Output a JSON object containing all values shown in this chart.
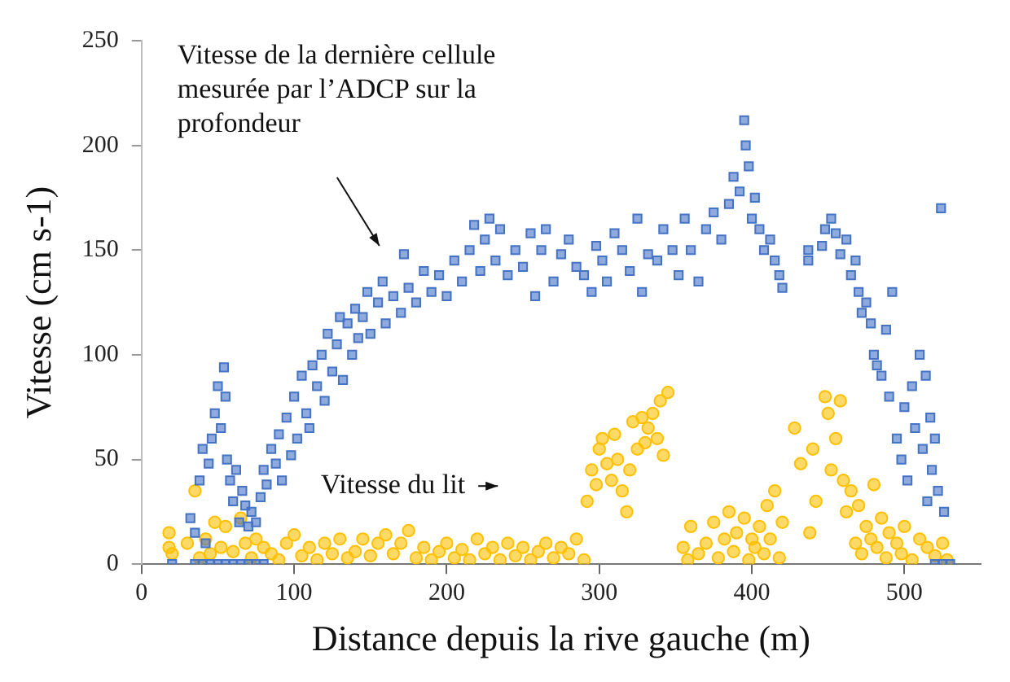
{
  "chart_data": {
    "type": "scatter",
    "xlabel": "Distance depuis la rive gauche (m)",
    "ylabel": "Vitesse (cm s-1)",
    "xlim": [
      0,
      550
    ],
    "xticks": [
      0,
      100,
      200,
      300,
      400,
      500
    ],
    "ylim": [
      0,
      250
    ],
    "yticks": [
      0,
      50,
      100,
      150,
      200,
      250
    ],
    "grid": false,
    "legend": false,
    "annotations": [
      "Vitesse de la dernière cellule mesurée par l’ADCP sur la profondeur",
      "Vitesse du lit"
    ],
    "series": [
      {
        "color": "#4472c4",
        "marker": "square",
        "x": [
          20,
          35,
          40,
          45,
          50,
          55,
          60,
          65,
          70,
          75,
          80,
          32,
          35,
          38,
          40,
          42,
          44,
          46,
          48,
          50,
          52,
          54,
          55,
          56,
          58,
          60,
          62,
          64,
          66,
          68,
          70,
          72,
          75,
          78,
          80,
          82,
          85,
          88,
          90,
          92,
          95,
          98,
          100,
          102,
          105,
          108,
          110,
          112,
          115,
          118,
          120,
          122,
          125,
          128,
          130,
          132,
          135,
          138,
          140,
          142,
          145,
          148,
          150,
          155,
          158,
          160,
          165,
          170,
          172,
          175,
          180,
          185,
          190,
          195,
          200,
          205,
          210,
          215,
          218,
          222,
          225,
          228,
          232,
          235,
          240,
          245,
          250,
          255,
          258,
          262,
          265,
          270,
          275,
          280,
          285,
          290,
          295,
          298,
          302,
          305,
          310,
          315,
          320,
          325,
          328,
          332,
          338,
          342,
          348,
          352,
          356,
          360,
          365,
          370,
          375,
          380,
          385,
          388,
          392,
          395,
          396,
          398,
          400,
          402,
          405,
          408,
          412,
          415,
          418,
          420,
          437,
          437,
          446,
          448,
          452,
          455,
          458,
          462,
          465,
          468,
          470,
          472,
          475,
          478,
          480,
          482,
          485,
          488,
          490,
          492,
          495,
          498,
          500,
          502,
          505,
          507,
          510,
          512,
          514,
          515,
          517,
          518,
          520,
          522,
          524,
          526,
          520,
          525,
          530
        ],
        "values": [
          0,
          0,
          0,
          0,
          0,
          0,
          0,
          0,
          0,
          0,
          0,
          22,
          15,
          40,
          55,
          10,
          48,
          60,
          72,
          85,
          65,
          94,
          80,
          50,
          40,
          30,
          45,
          20,
          35,
          28,
          18,
          25,
          20,
          32,
          45,
          38,
          55,
          48,
          62,
          40,
          70,
          52,
          80,
          60,
          90,
          72,
          65,
          95,
          85,
          100,
          78,
          110,
          92,
          105,
          118,
          88,
          115,
          100,
          122,
          108,
          118,
          130,
          110,
          125,
          135,
          115,
          128,
          120,
          148,
          132,
          125,
          140,
          130,
          138,
          128,
          145,
          135,
          150,
          162,
          140,
          155,
          165,
          145,
          160,
          138,
          150,
          142,
          158,
          128,
          150,
          160,
          135,
          148,
          155,
          142,
          138,
          130,
          152,
          145,
          135,
          158,
          150,
          140,
          165,
          130,
          148,
          145,
          160,
          150,
          138,
          165,
          150,
          135,
          160,
          168,
          155,
          172,
          185,
          178,
          212,
          200,
          190,
          165,
          175,
          160,
          150,
          155,
          145,
          138,
          132,
          150,
          145,
          152,
          160,
          165,
          158,
          148,
          155,
          138,
          145,
          130,
          120,
          125,
          115,
          100,
          95,
          90,
          112,
          80,
          130,
          60,
          50,
          75,
          40,
          85,
          65,
          100,
          55,
          90,
          30,
          70,
          45,
          60,
          35,
          170,
          25,
          0,
          0,
          0
        ]
      },
      {
        "color": "#ffc000",
        "marker": "circle",
        "x": [
          18,
          18,
          20,
          30,
          35,
          38,
          42,
          45,
          48,
          52,
          55,
          60,
          65,
          68,
          72,
          75,
          80,
          85,
          90,
          95,
          100,
          105,
          110,
          115,
          120,
          125,
          130,
          135,
          140,
          145,
          150,
          155,
          160,
          165,
          170,
          175,
          180,
          185,
          190,
          195,
          200,
          205,
          210,
          215,
          220,
          225,
          230,
          235,
          240,
          245,
          250,
          255,
          260,
          265,
          270,
          275,
          280,
          285,
          290,
          292,
          295,
          298,
          300,
          302,
          305,
          308,
          310,
          312,
          315,
          318,
          320,
          322,
          325,
          328,
          330,
          332,
          335,
          338,
          340,
          342,
          345,
          355,
          358,
          360,
          365,
          370,
          375,
          378,
          382,
          385,
          388,
          390,
          395,
          398,
          400,
          402,
          405,
          408,
          410,
          412,
          415,
          418,
          420,
          428,
          432,
          438,
          440,
          442,
          448,
          450,
          452,
          455,
          458,
          460,
          462,
          465,
          468,
          470,
          472,
          475,
          478,
          480,
          482,
          485,
          488,
          490,
          495,
          498,
          500,
          505,
          510,
          515,
          520,
          525,
          528
        ],
        "values": [
          15,
          8,
          5,
          10,
          35,
          3,
          12,
          5,
          20,
          8,
          18,
          6,
          22,
          10,
          3,
          12,
          8,
          5,
          2,
          10,
          14,
          4,
          8,
          2,
          10,
          5,
          12,
          3,
          6,
          12,
          4,
          10,
          14,
          5,
          10,
          16,
          3,
          8,
          2,
          6,
          10,
          3,
          7,
          2,
          12,
          5,
          8,
          2,
          10,
          4,
          8,
          2,
          6,
          10,
          3,
          8,
          5,
          12,
          2,
          30,
          45,
          38,
          55,
          60,
          48,
          40,
          62,
          50,
          35,
          25,
          45,
          68,
          55,
          70,
          58,
          65,
          72,
          60,
          78,
          52,
          82,
          8,
          2,
          18,
          5,
          10,
          20,
          3,
          12,
          25,
          6,
          15,
          22,
          2,
          12,
          8,
          18,
          5,
          28,
          12,
          35,
          3,
          20,
          65,
          48,
          15,
          55,
          30,
          80,
          72,
          45,
          60,
          78,
          40,
          25,
          35,
          10,
          28,
          5,
          18,
          12,
          38,
          8,
          22,
          3,
          15,
          10,
          5,
          18,
          2,
          12,
          8,
          4,
          10,
          2
        ]
      }
    ]
  }
}
